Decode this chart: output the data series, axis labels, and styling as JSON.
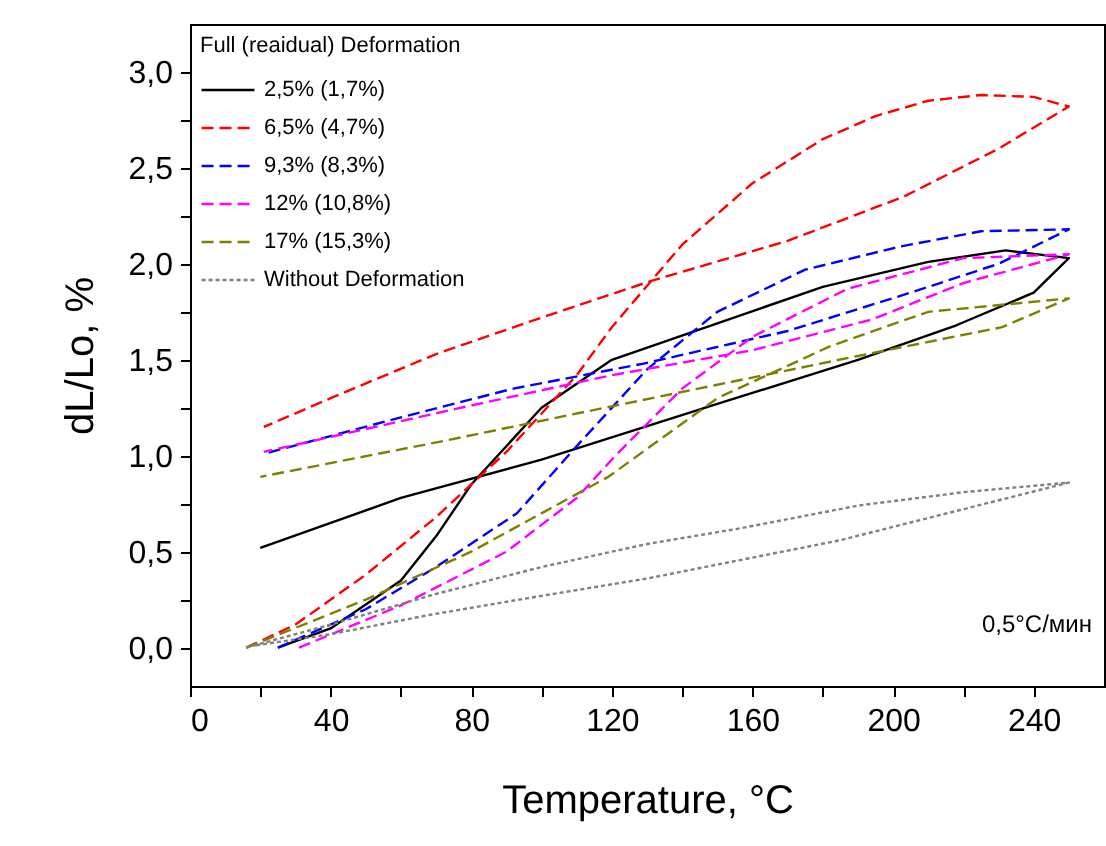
{
  "chart_data": {
    "type": "line",
    "xlabel": "Temperature, °C",
    "ylabel": "dL/Lo, %",
    "legend_title": "Full (reaidual) Deformation",
    "legend": "top left",
    "grid": false,
    "marker": "none",
    "xlim": [
      0,
      260
    ],
    "ylim": [
      -0.2,
      3.25
    ],
    "xticks": [
      0,
      {
        "value": 20,
        "label": null
      },
      40,
      {
        "value": 60,
        "label": null
      },
      80,
      {
        "value": 100,
        "label": null
      },
      120,
      {
        "value": 140,
        "label": null
      },
      160,
      {
        "value": 180,
        "label": null
      },
      200,
      {
        "value": 220,
        "label": null
      },
      240
    ],
    "yticks": [
      {
        "value": 0,
        "label": "0,0"
      },
      {
        "value": 0.25,
        "label": null
      },
      {
        "value": 0.5,
        "label": "0,5"
      },
      {
        "value": 0.75,
        "label": null
      },
      {
        "value": 1,
        "label": "1,0"
      },
      {
        "value": 1.25,
        "label": null
      },
      {
        "value": 1.5,
        "label": "1,5"
      },
      {
        "value": 1.75,
        "label": null
      },
      {
        "value": 2,
        "label": "2,0"
      },
      {
        "value": 2.25,
        "label": null
      },
      {
        "value": 2.5,
        "label": "2,5"
      },
      {
        "value": 2.75,
        "label": null
      },
      {
        "value": 3,
        "label": "3,0"
      }
    ],
    "annotations": [
      "0,5°C/мин"
    ],
    "series": [
      {
        "name": "2,5% (1,7%)",
        "color": "#000000",
        "line_style": "solid",
        "x": [
          25,
          40,
          60,
          70,
          80,
          100,
          120,
          150,
          180,
          210,
          232,
          250,
          240,
          218,
          190,
          150,
          100,
          60,
          20
        ],
        "values": [
          0,
          0.1,
          0.35,
          0.58,
          0.85,
          1.25,
          1.5,
          1.69,
          1.88,
          2.01,
          2.07,
          2.03,
          1.85,
          1.68,
          1.5,
          1.27,
          0.98,
          0.78,
          0.52
        ]
      },
      {
        "name": "6,5% (4,7%)",
        "color": "#ff0000",
        "line_style": "dashed",
        "x": [
          16,
          30,
          50,
          70,
          90,
          110,
          120,
          140,
          160,
          180,
          195,
          210,
          225,
          240,
          250,
          230,
          203,
          170,
          131,
          100,
          70,
          40,
          21
        ],
        "values": [
          0,
          0.12,
          0.38,
          0.68,
          1.02,
          1.42,
          1.67,
          2.1,
          2.42,
          2.65,
          2.77,
          2.85,
          2.88,
          2.87,
          2.82,
          2.6,
          2.35,
          2.12,
          1.91,
          1.72,
          1.53,
          1.3,
          1.15
        ]
      },
      {
        "name": "9,3% (8,3%)",
        "color": "#0000ff",
        "line_style": "dashed",
        "x": [
          25,
          50,
          70,
          93,
          110,
          130,
          150,
          175,
          202,
          225,
          250,
          230,
          205,
          170,
          129,
          92,
          60,
          21
        ],
        "values": [
          0,
          0.2,
          0.42,
          0.7,
          1.05,
          1.45,
          1.75,
          1.97,
          2.09,
          2.17,
          2.18,
          2.0,
          1.85,
          1.65,
          1.48,
          1.35,
          1.2,
          1.01
        ]
      },
      {
        "name": "12% (10,8%)",
        "color": "#ff00ff",
        "line_style": "dashed",
        "x": [
          31,
          60,
          90,
          110,
          121,
          140,
          160,
          187,
          220,
          250,
          220,
          194,
          160,
          120,
          77,
          21
        ],
        "values": [
          0,
          0.22,
          0.5,
          0.78,
          1.0,
          1.35,
          1.62,
          1.87,
          2.03,
          2.05,
          1.9,
          1.71,
          1.55,
          1.42,
          1.25,
          1.02
        ]
      },
      {
        "name": "17% (15,3%)",
        "color": "#808000",
        "line_style": "dashed",
        "x": [
          16,
          50,
          80,
          119,
          150,
          182,
          210,
          250,
          231,
          190,
          150,
          110,
          73,
          20
        ],
        "values": [
          0,
          0.25,
          0.5,
          0.89,
          1.3,
          1.57,
          1.75,
          1.82,
          1.67,
          1.52,
          1.37,
          1.22,
          1.08,
          0.89
        ]
      },
      {
        "name": "Without Deformation",
        "color": "#808080",
        "line_style": "dotted",
        "x": [
          16,
          40,
          70,
          100,
          130,
          156,
          190,
          220,
          250,
          185,
          130,
          100,
          68,
          40,
          18
        ],
        "values": [
          0,
          0.12,
          0.28,
          0.42,
          0.54,
          0.62,
          0.74,
          0.81,
          0.86,
          0.56,
          0.36,
          0.27,
          0.17,
          0.07,
          0.01
        ]
      }
    ]
  }
}
